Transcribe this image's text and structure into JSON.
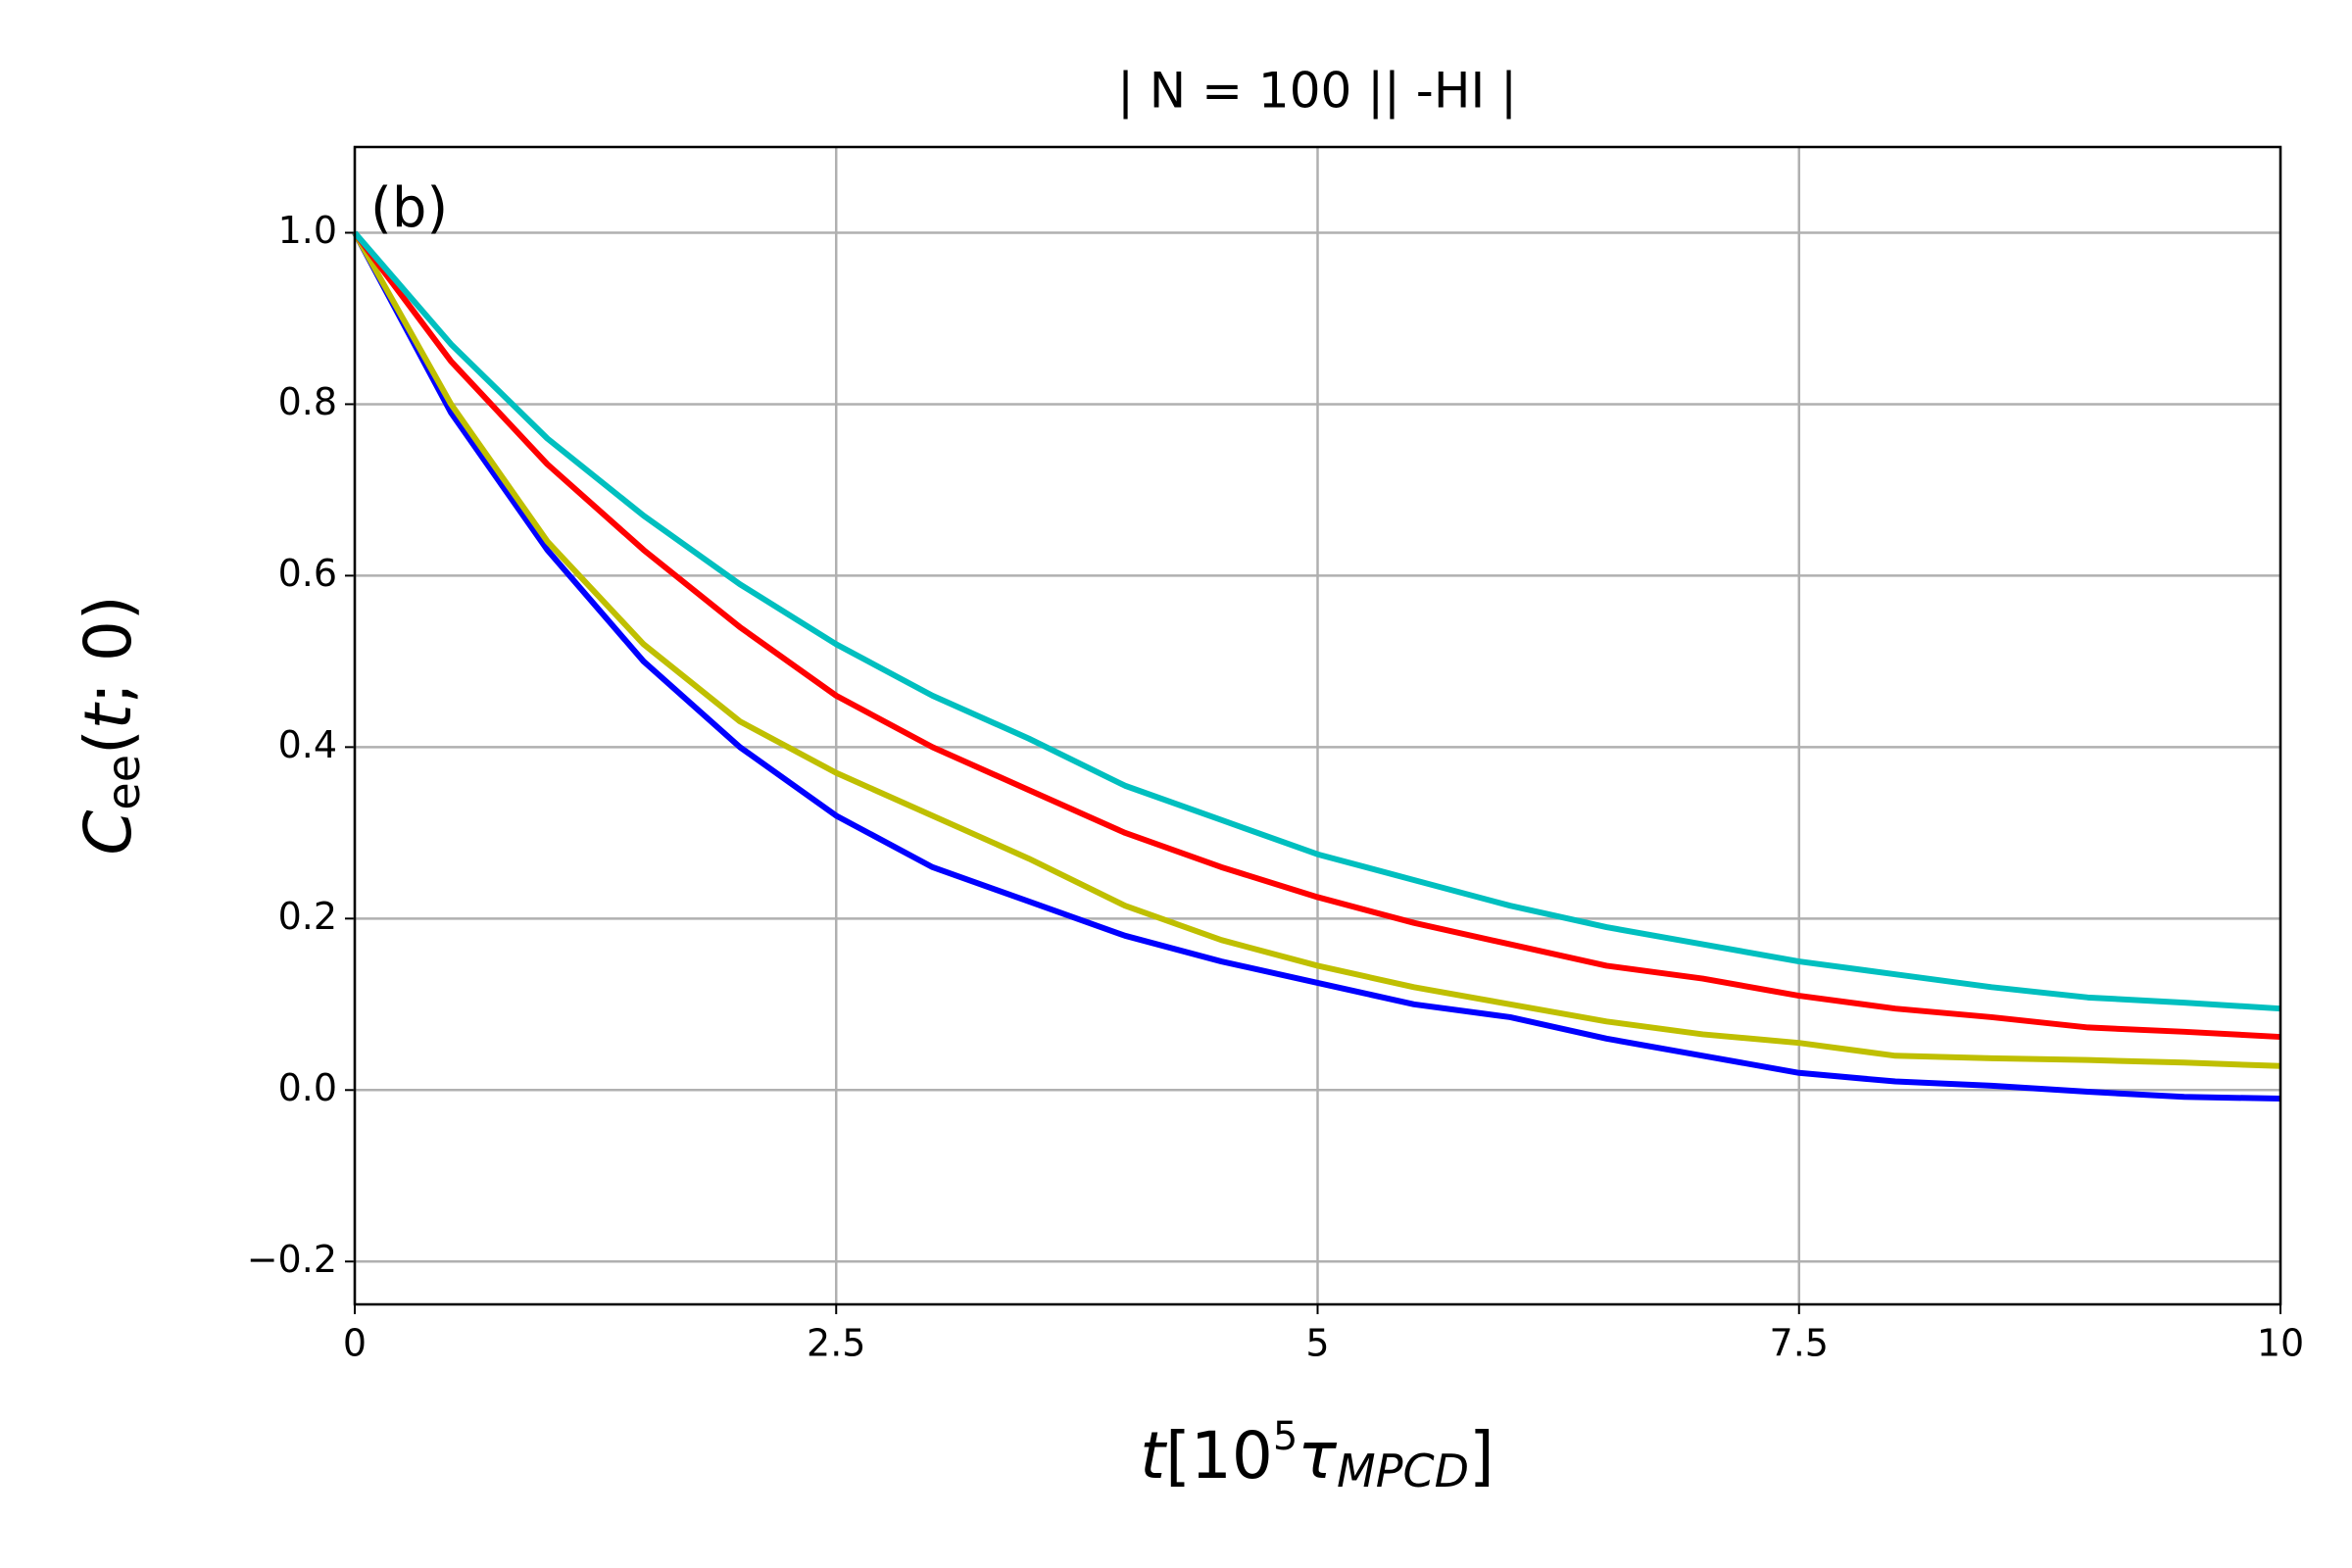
{
  "chart_data": {
    "type": "line",
    "title": "| N = 100 || -HI  |",
    "annotation": "(b)",
    "x_label": [
      "t",
      "[10",
      "5",
      "τ",
      "MPCD",
      "]"
    ],
    "y_label": [
      "C",
      "ee",
      "(",
      "t",
      "; 0)"
    ],
    "x": [
      0,
      0.5,
      1,
      1.5,
      2,
      2.5,
      3,
      3.5,
      4,
      4.5,
      5,
      5.5,
      6,
      6.5,
      7,
      7.5,
      8,
      8.5,
      9,
      9.5,
      10
    ],
    "series": [
      {
        "color": "#0000ff",
        "values": [
          1.0,
          0.79,
          0.63,
          0.5,
          0.4,
          0.32,
          0.26,
          0.22,
          0.18,
          0.15,
          0.125,
          0.1,
          0.085,
          0.06,
          0.04,
          0.02,
          0.01,
          0.005,
          -0.002,
          -0.008,
          -0.01
        ]
      },
      {
        "color": "#bfbf00",
        "values": [
          1.0,
          0.8,
          0.64,
          0.52,
          0.43,
          0.37,
          0.32,
          0.27,
          0.215,
          0.175,
          0.145,
          0.12,
          0.1,
          0.08,
          0.065,
          0.055,
          0.04,
          0.037,
          0.035,
          0.032,
          0.028
        ]
      },
      {
        "color": "#ff0000",
        "values": [
          1.0,
          0.85,
          0.73,
          0.63,
          0.54,
          0.46,
          0.4,
          0.35,
          0.3,
          0.26,
          0.225,
          0.195,
          0.17,
          0.145,
          0.13,
          0.11,
          0.095,
          0.085,
          0.073,
          0.068,
          0.062
        ]
      },
      {
        "color": "#00bfbf",
        "values": [
          1.0,
          0.87,
          0.76,
          0.67,
          0.59,
          0.52,
          0.46,
          0.41,
          0.355,
          0.315,
          0.275,
          0.245,
          0.215,
          0.19,
          0.17,
          0.15,
          0.135,
          0.12,
          0.108,
          0.102,
          0.095
        ]
      }
    ],
    "xlim": [
      0,
      10
    ],
    "xticks": [
      0,
      2.5,
      5,
      7.5,
      10
    ],
    "ylim": [
      -0.25,
      1.1
    ],
    "yticks": [
      {
        "value": -0.2,
        "label": "−0.2"
      },
      {
        "value": 0,
        "label": "0.0"
      },
      0.2,
      0.4,
      0.6,
      0.8,
      {
        "value": 1,
        "label": "1.0"
      }
    ],
    "grid": true
  }
}
